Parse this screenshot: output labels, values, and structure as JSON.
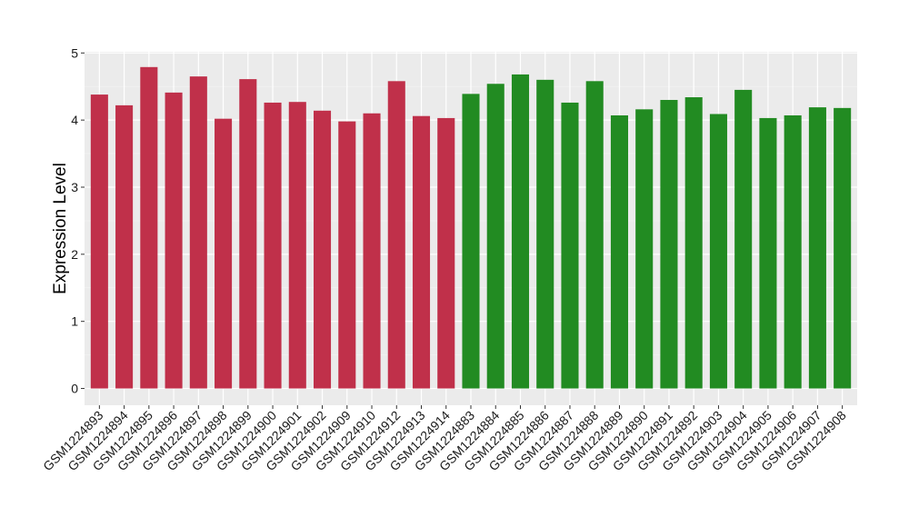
{
  "chart_data": {
    "type": "bar",
    "title": "",
    "xlabel": "",
    "ylabel": "Expression Level",
    "ylim": [
      0,
      5
    ],
    "yticks": [
      0,
      1,
      2,
      3,
      4,
      5
    ],
    "grid": true,
    "legend": "none",
    "colors": {
      "red": "#C0304A",
      "green": "#228B22",
      "panel_background": "#EBEBEB",
      "grid_major": "#FFFFFF",
      "grid_minor": "#F5F5F5"
    },
    "categories": [
      "GSM1224893",
      "GSM1224894",
      "GSM1224895",
      "GSM1224896",
      "GSM1224897",
      "GSM1224898",
      "GSM1224899",
      "GSM1224900",
      "GSM1224901",
      "GSM1224902",
      "GSM1224909",
      "GSM1224910",
      "GSM1224912",
      "GSM1224913",
      "GSM1224914",
      "GSM1224883",
      "GSM1224884",
      "GSM1224885",
      "GSM1224886",
      "GSM1224887",
      "GSM1224888",
      "GSM1224889",
      "GSM1224890",
      "GSM1224891",
      "GSM1224892",
      "GSM1224903",
      "GSM1224904",
      "GSM1224905",
      "GSM1224906",
      "GSM1224907",
      "GSM1224908"
    ],
    "values": [
      4.38,
      4.22,
      4.79,
      4.41,
      4.65,
      4.02,
      4.61,
      4.26,
      4.27,
      4.14,
      3.98,
      4.1,
      4.58,
      4.06,
      4.03,
      4.39,
      4.54,
      4.68,
      4.6,
      4.26,
      4.58,
      4.07,
      4.16,
      4.3,
      4.34,
      4.09,
      4.45,
      4.03,
      4.07,
      4.19,
      4.18
    ],
    "bar_colors": [
      "red",
      "red",
      "red",
      "red",
      "red",
      "red",
      "red",
      "red",
      "red",
      "red",
      "red",
      "red",
      "red",
      "red",
      "red",
      "green",
      "green",
      "green",
      "green",
      "green",
      "green",
      "green",
      "green",
      "green",
      "green",
      "green",
      "green",
      "green",
      "green",
      "green",
      "green"
    ]
  }
}
